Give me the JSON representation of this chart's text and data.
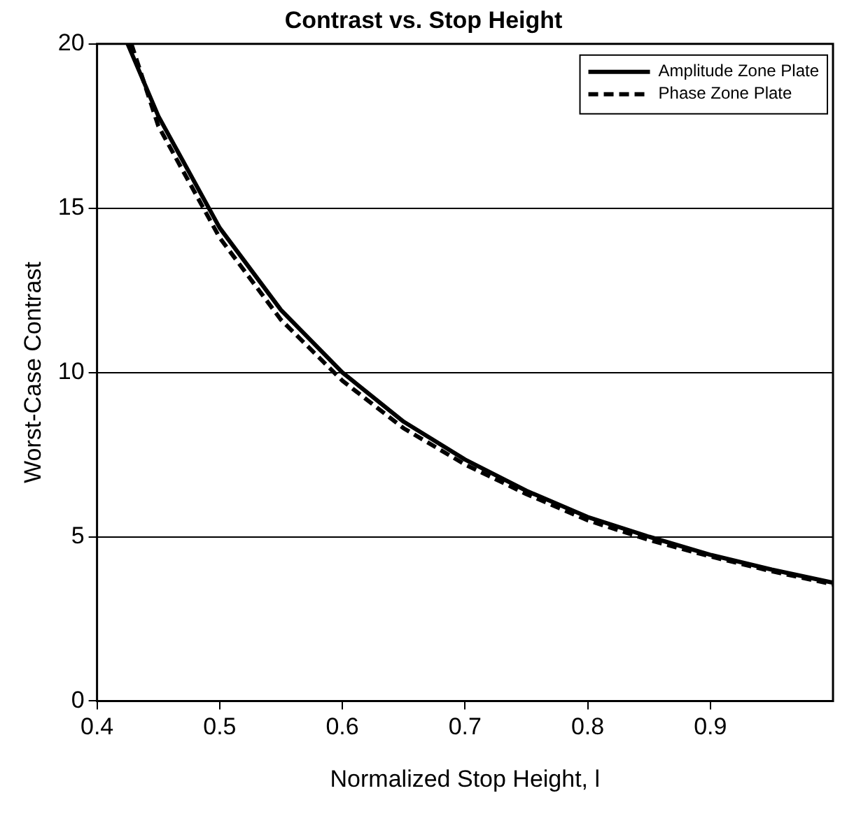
{
  "chart_data": {
    "type": "line",
    "title": "Contrast vs. Stop Height",
    "xlabel": "Normalized Stop Height, l",
    "ylabel": "Worst-Case Contrast",
    "xlim": [
      0.4,
      1.0
    ],
    "xticks": [
      0.4,
      0.5,
      0.6,
      0.7,
      0.8,
      0.9
    ],
    "ylim": [
      0,
      20
    ],
    "yticks": [
      0,
      5,
      10,
      15,
      20
    ],
    "grid": "y",
    "legend": "top right",
    "marker": "none",
    "series": [
      {
        "name": "Amplitude Zone Plate",
        "color": "#000000",
        "line_style": "solid",
        "x": [
          0.425,
          0.45,
          0.5,
          0.55,
          0.6,
          0.65,
          0.7,
          0.75,
          0.8,
          0.85,
          0.9,
          0.95,
          1.0
        ],
        "values": [
          20,
          17.8,
          14.4,
          11.9,
          10.0,
          8.5,
          7.35,
          6.4,
          5.6,
          5.0,
          4.45,
          4.0,
          3.6
        ]
      },
      {
        "name": "Phase Zone Plate",
        "color": "#000000",
        "line_style": "dashed",
        "x": [
          0.428,
          0.45,
          0.5,
          0.55,
          0.6,
          0.65,
          0.7,
          0.75,
          0.8,
          0.85,
          0.9,
          0.95,
          1.0
        ],
        "values": [
          20,
          17.5,
          14.1,
          11.6,
          9.75,
          8.3,
          7.2,
          6.3,
          5.5,
          4.9,
          4.4,
          3.95,
          3.55
        ]
      }
    ]
  }
}
